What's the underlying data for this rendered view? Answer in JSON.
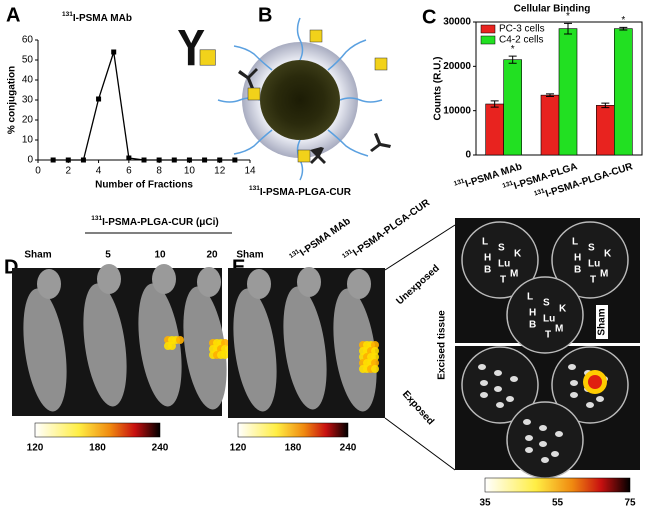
{
  "chart_data": [
    {
      "type": "line",
      "panel": "A",
      "title_isotope": "131",
      "title": "I-PSMA MAb",
      "xlabel": "Number of Fractions",
      "ylabel": "% conjugation",
      "x": [
        1,
        2,
        3,
        4,
        5,
        6,
        7,
        8,
        9,
        10,
        11,
        12,
        13
      ],
      "series": [
        {
          "color": "#000000",
          "values": [
            0,
            0,
            0,
            30.5,
            54,
            1,
            0,
            0,
            0,
            0,
            0,
            0,
            0
          ]
        }
      ],
      "xlim": [
        0,
        14
      ],
      "xticks": [
        0,
        2,
        4,
        6,
        8,
        10,
        12,
        14
      ],
      "ylim": [
        0,
        60
      ],
      "yticks": [
        0,
        10,
        20,
        30,
        40,
        50,
        60
      ]
    },
    {
      "type": "bar",
      "panel": "C",
      "title": "Cellular Binding",
      "ylabel": "Counts (R.U.)",
      "category_isotope": "131",
      "categories": [
        "I-PSMA MAb",
        "I-PSMA-PLGA",
        "I-PSMA-PLGA-CUR"
      ],
      "series": [
        {
          "name": "PC-3 cells",
          "color": "#e8231f",
          "values": [
            11500,
            13500,
            11200
          ],
          "errors": [
            700,
            300,
            500
          ]
        },
        {
          "name": "C4-2 cells",
          "color": "#22e022",
          "values": [
            21500,
            28500,
            28500
          ],
          "errors": [
            800,
            1200,
            300
          ]
        }
      ],
      "annotations": [
        "*",
        "*",
        "*"
      ],
      "legend": "upper left",
      "ylim": [
        0,
        30000
      ],
      "yticks": [
        0,
        10000,
        20000,
        30000
      ]
    }
  ],
  "panel_b": {
    "label": "B",
    "isotope": "131",
    "caption": "I-PSMA-PLGA-CUR"
  },
  "panel_d": {
    "label": "D",
    "isotope": "131",
    "header": "I-PSMA-PLGA-CUR (μCi)",
    "columns": [
      "Sham",
      "5",
      "10",
      "20"
    ],
    "colorbar": [
      120,
      180,
      240
    ]
  },
  "panel_e": {
    "label": "E",
    "isotope": "131",
    "sham": "Sham",
    "columns": [
      "I-PSMA MAb",
      "I-PSMA-PLGA-CUR"
    ],
    "colorbar": [
      120,
      180,
      240
    ],
    "tissue_title": "Excised tissue",
    "rows": [
      "Unexposed",
      "Exposed"
    ],
    "organs": [
      "L",
      "S",
      "K",
      "H",
      "Lu",
      "B",
      "M",
      "T"
    ],
    "tissue_colorbar": [
      35,
      55,
      75
    ]
  }
}
